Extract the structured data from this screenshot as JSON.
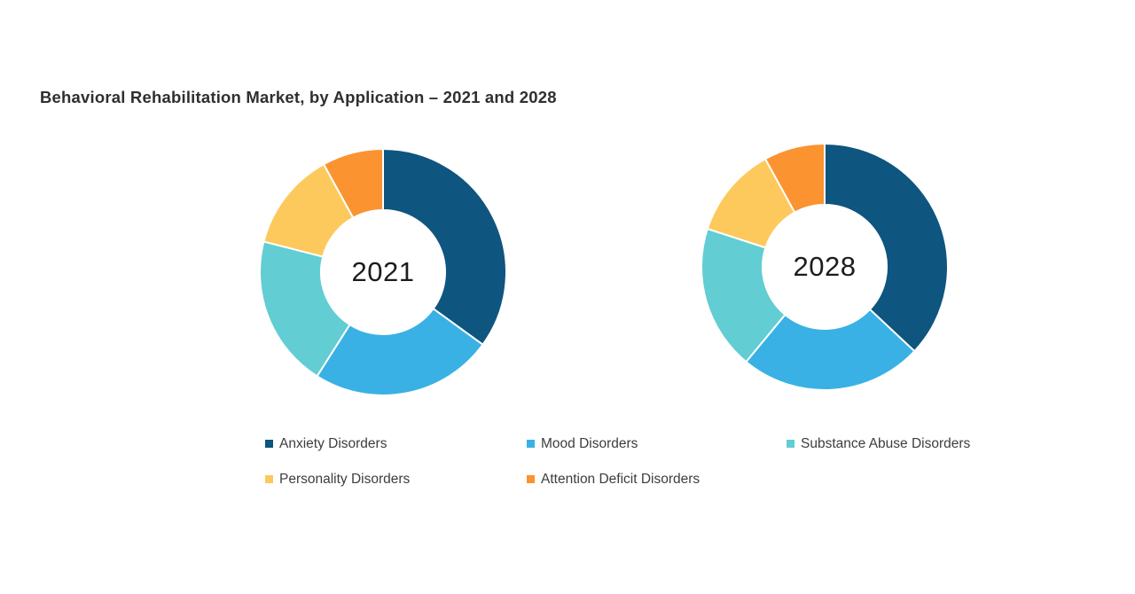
{
  "title": {
    "text": "Behavioral Rehabilitation Market, by Application – 2021 and 2028"
  },
  "chart_data": [
    {
      "type": "pie",
      "subtype": "donut",
      "center_label": "2021",
      "categories": [
        "Anxiety Disorders",
        "Mood Disorders",
        "Substance Abuse Disorders",
        "Personality Disorders",
        "Attention Deficit Disorders"
      ],
      "values": [
        35,
        24,
        20,
        13,
        8
      ],
      "colors": [
        "#0e557f",
        "#3ab1e4",
        "#62cdd2",
        "#fec95c",
        "#fa9330"
      ],
      "start_angle_deg": 0,
      "direction": "clockwise",
      "slice_gap_color": "#ffffff",
      "note": "Percentages estimated from arc angles; no numeric data labels are displayed in the figure."
    },
    {
      "type": "pie",
      "subtype": "donut",
      "center_label": "2028",
      "categories": [
        "Anxiety Disorders",
        "Mood Disorders",
        "Substance Abuse Disorders",
        "Personality Disorders",
        "Attention Deficit Disorders"
      ],
      "values": [
        37,
        24,
        19,
        12,
        8
      ],
      "colors": [
        "#0e557f",
        "#3ab1e4",
        "#62cdd2",
        "#fec95c",
        "#fa9330"
      ],
      "start_angle_deg": 0,
      "direction": "clockwise",
      "slice_gap_color": "#ffffff",
      "note": "Percentages estimated from arc angles; no numeric data labels are displayed in the figure."
    }
  ],
  "legend": {
    "position": "bottom",
    "items": [
      {
        "label": "Anxiety Disorders",
        "color": "#0e557f"
      },
      {
        "label": "Mood Disorders",
        "color": "#3ab1e4"
      },
      {
        "label": "Substance Abuse Disorders",
        "color": "#62cdd2"
      },
      {
        "label": "Personality Disorders",
        "color": "#fec95c"
      },
      {
        "label": "Attention Deficit Disorders",
        "color": "#fa9330"
      }
    ]
  },
  "colors": {
    "background": "#ffffff",
    "title_text": "#2f2f2f",
    "center_label_text": "#1c1c1c",
    "legend_text": "#3d3d3d"
  }
}
